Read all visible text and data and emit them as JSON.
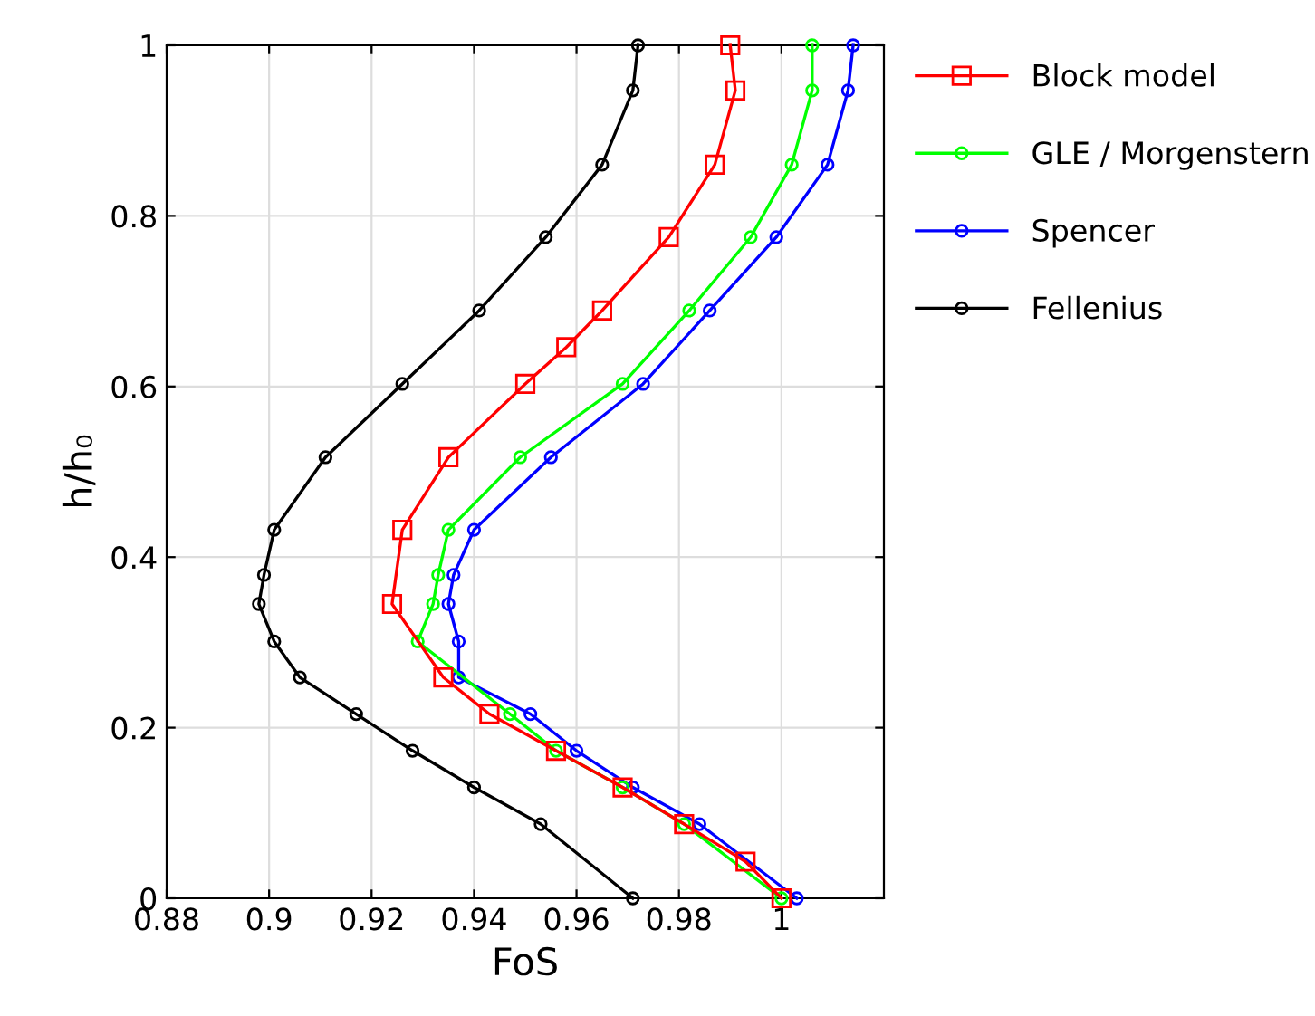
{
  "chart_data": {
    "type": "line",
    "xlabel": "FoS",
    "ylabel": "h/h₀",
    "xlim": [
      0.88,
      1.02
    ],
    "xticks": [
      0.88,
      0.9,
      0.92,
      0.94,
      0.96,
      0.98,
      1
    ],
    "ylim": [
      0,
      1
    ],
    "yticks": [
      0,
      0.2,
      0.4,
      0.6,
      0.8,
      1
    ],
    "grid": true,
    "legend": "right",
    "series": [
      {
        "name": "Block model",
        "color": "#ff0000",
        "marker": "square",
        "x": [
          0.99,
          0.991,
          0.987,
          0.978,
          0.965,
          0.958,
          0.95,
          0.935,
          0.926,
          0.924,
          0.934,
          0.943,
          0.956,
          0.969,
          0.981,
          0.993,
          1.0
        ],
        "values": [
          1.0,
          0.947,
          0.86,
          0.775,
          0.689,
          0.646,
          0.603,
          0.517,
          0.432,
          0.345,
          0.259,
          0.216,
          0.173,
          0.13,
          0.087,
          0.043,
          0.0
        ]
      },
      {
        "name": "GLE / Morgenstern",
        "color": "#00ff00",
        "marker": "circle",
        "x": [
          1.006,
          1.006,
          1.002,
          0.994,
          0.982,
          0.969,
          0.949,
          0.935,
          0.933,
          0.932,
          0.929,
          0.947,
          0.956,
          0.969,
          0.981,
          1.0
        ],
        "values": [
          1.0,
          0.947,
          0.86,
          0.775,
          0.689,
          0.603,
          0.517,
          0.432,
          0.379,
          0.345,
          0.301,
          0.216,
          0.173,
          0.13,
          0.087,
          0.0
        ]
      },
      {
        "name": "Spencer",
        "color": "#0000ff",
        "marker": "circle",
        "x": [
          1.014,
          1.013,
          1.009,
          0.999,
          0.986,
          0.973,
          0.955,
          0.94,
          0.936,
          0.935,
          0.937,
          0.937,
          0.951,
          0.96,
          0.971,
          0.984,
          1.003
        ],
        "values": [
          1.0,
          0.947,
          0.86,
          0.775,
          0.689,
          0.603,
          0.517,
          0.432,
          0.379,
          0.345,
          0.301,
          0.259,
          0.216,
          0.173,
          0.13,
          0.087,
          0.0
        ]
      },
      {
        "name": "Fellenius",
        "color": "#000000",
        "marker": "circle",
        "x": [
          0.972,
          0.971,
          0.965,
          0.954,
          0.941,
          0.926,
          0.911,
          0.901,
          0.899,
          0.898,
          0.901,
          0.906,
          0.917,
          0.928,
          0.94,
          0.953,
          0.971
        ],
        "values": [
          1.0,
          0.947,
          0.86,
          0.775,
          0.689,
          0.603,
          0.517,
          0.432,
          0.379,
          0.345,
          0.301,
          0.259,
          0.216,
          0.173,
          0.13,
          0.087,
          0.0
        ]
      }
    ]
  }
}
